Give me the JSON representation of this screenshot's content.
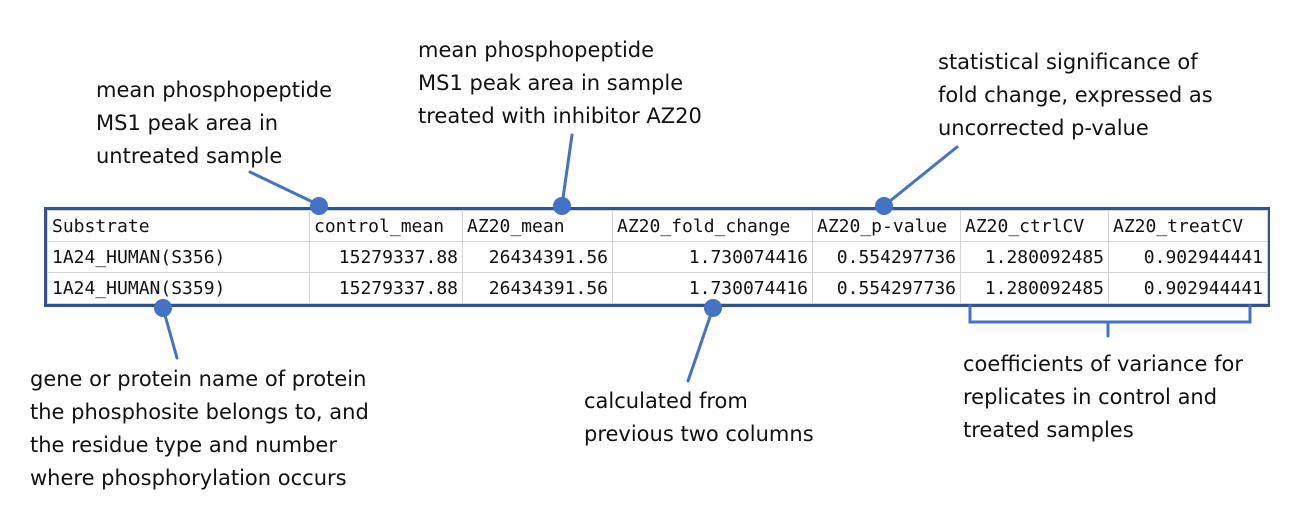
{
  "colors": {
    "accent": "#4472c4",
    "border": "#2f5496",
    "grid": "#d4d4d4"
  },
  "annotations": {
    "control_mean": [
      "mean phosphopeptide",
      "MS1 peak area in",
      "untreated sample"
    ],
    "treated_mean": [
      "mean phosphopeptide",
      "MS1 peak area in sample",
      "treated with inhibitor AZ20"
    ],
    "p_value": [
      "statistical significance of",
      "fold change, expressed as",
      "uncorrected p-value"
    ],
    "substrate": [
      "gene or protein name of protein",
      "the phosphosite belongs to, and",
      "the residue type and number",
      "where phosphorylation occurs"
    ],
    "fold_change": [
      "calculated from",
      "previous two columns"
    ],
    "cv": [
      "coefficients of variance for",
      "replicates in control and",
      "treated samples"
    ]
  },
  "table": {
    "headers": [
      "Substrate",
      "control_mean",
      "AZ20_mean",
      "AZ20_fold_change",
      "AZ20_p-value",
      "AZ20_ctrlCV",
      "AZ20_treatCV"
    ],
    "rows": [
      [
        "1A24_HUMAN(S356)",
        "15279337.88",
        "26434391.56",
        "1.730074416",
        "0.554297736",
        "1.280092485",
        "0.902944441"
      ],
      [
        "1A24_HUMAN(S359)",
        "15279337.88",
        "26434391.56",
        "1.730074416",
        "0.554297736",
        "1.280092485",
        "0.902944441"
      ]
    ]
  }
}
